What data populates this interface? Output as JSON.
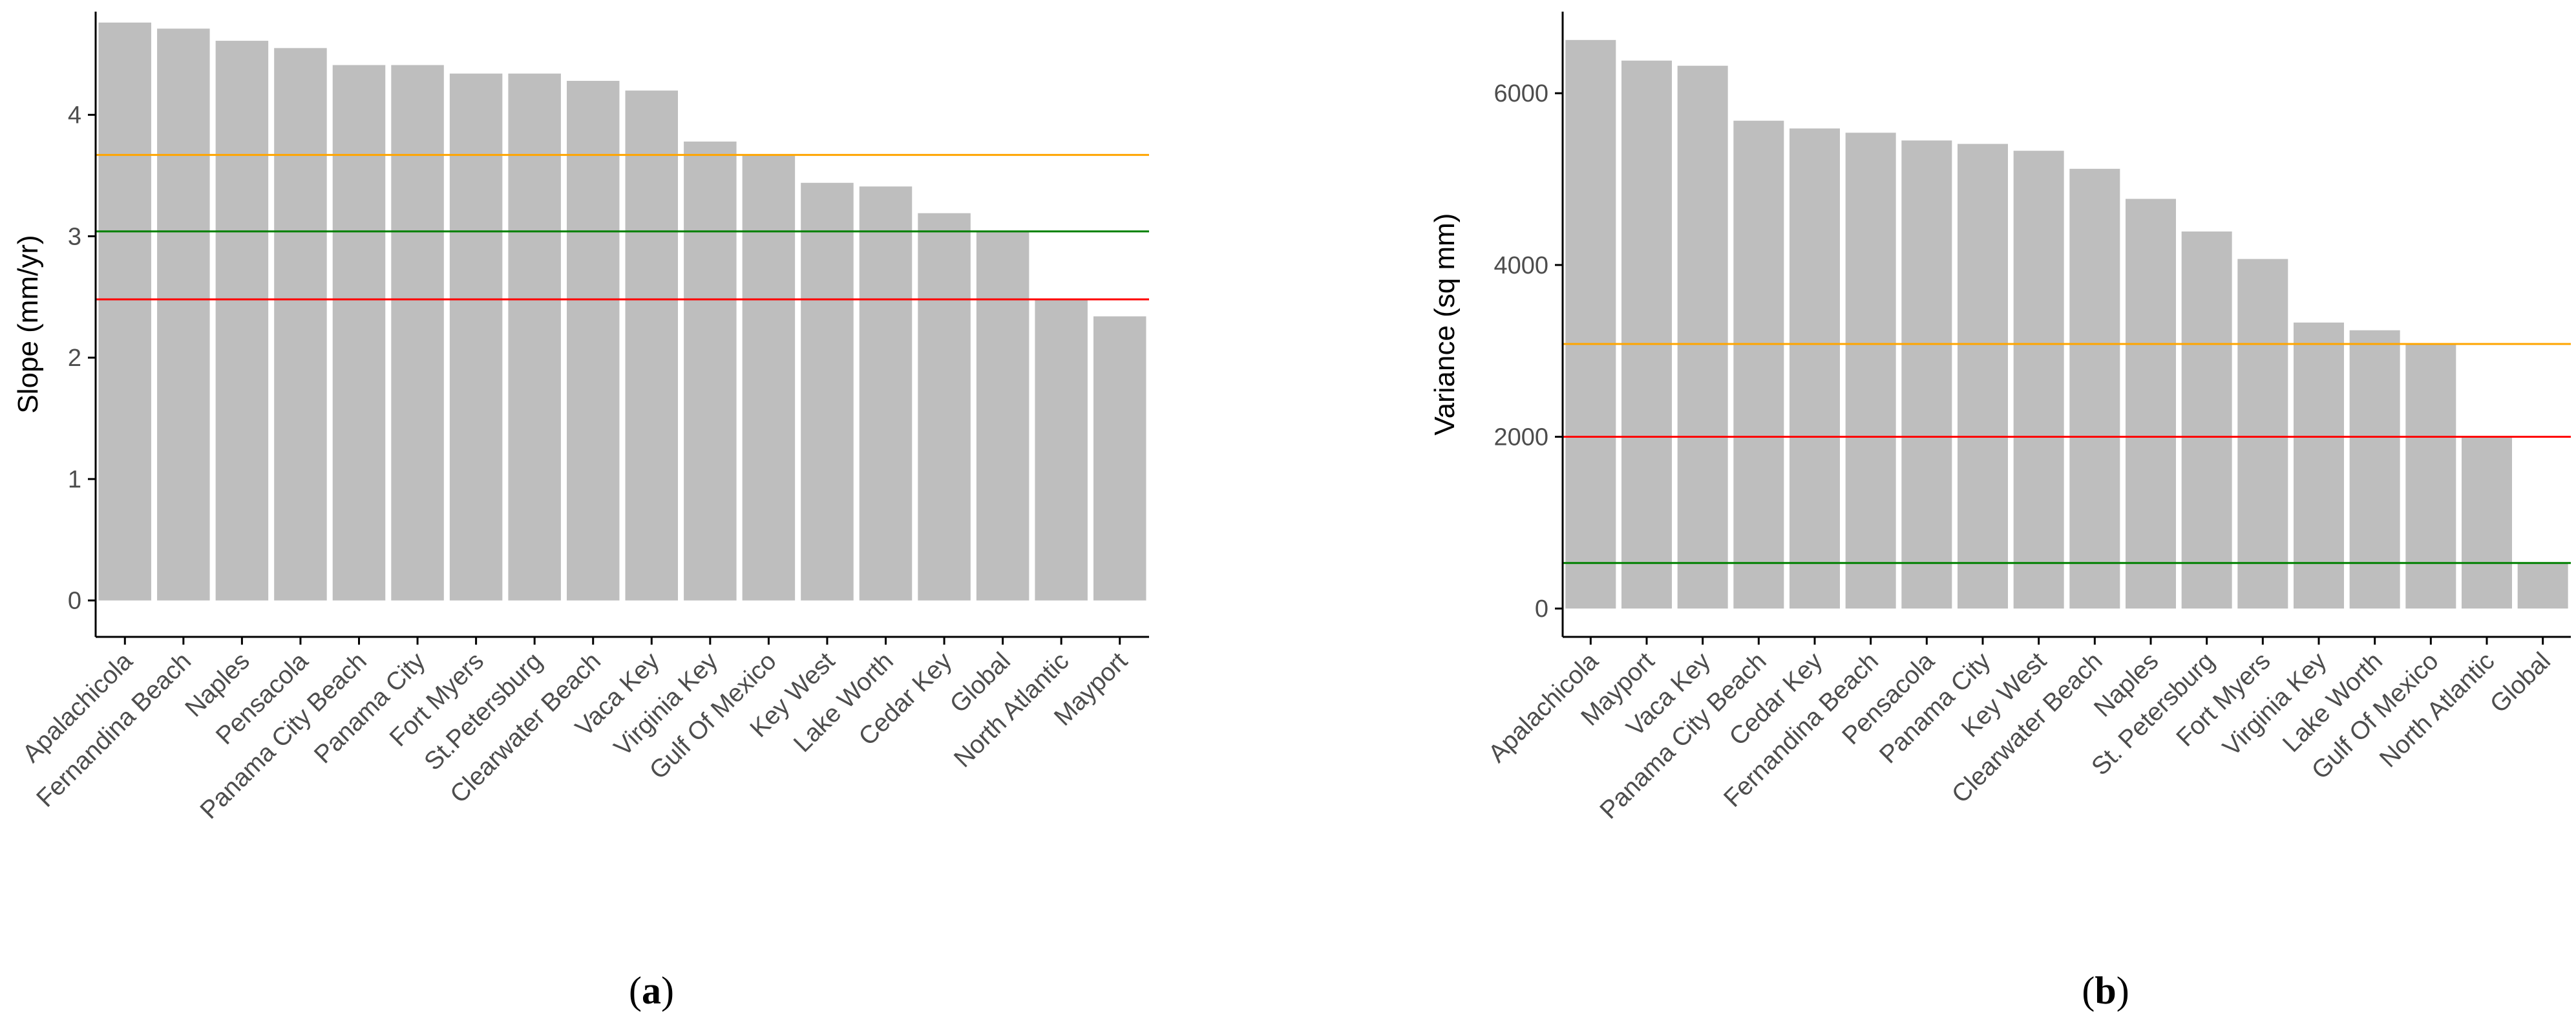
{
  "colors": {
    "bar": "#bebebe",
    "orange": "#ffa500",
    "green": "#008000",
    "red": "#ff0000",
    "axis": "#000000",
    "tick_text": "#4d4d4d"
  },
  "chart_data": [
    {
      "type": "bar",
      "panel_label": {
        "open": "(",
        "letter": "a",
        "close": ")"
      },
      "ylabel": "Slope (mm/yr)",
      "xlabel": "",
      "ylim": [
        -0.3,
        4.85
      ],
      "yticks": [
        0,
        1,
        2,
        3,
        4
      ],
      "categories": [
        "Apalachicola",
        "Fernandina Beach",
        "Naples",
        "Pensacola",
        "Panama City Beach",
        "Panama City",
        "Fort Myers",
        "St.Petersburg",
        "Clearwater Beach",
        "Vaca Key",
        "Virginia Key",
        "Gulf Of Mexico",
        "Key West",
        "Lake Worth",
        "Cedar Key",
        "Global",
        "North Atlantic",
        "Mayport"
      ],
      "values": [
        4.76,
        4.71,
        4.61,
        4.55,
        4.41,
        4.41,
        4.34,
        4.34,
        4.28,
        4.2,
        3.78,
        3.67,
        3.44,
        3.41,
        3.19,
        3.04,
        2.48,
        2.34
      ],
      "reference_lines": [
        {
          "name": "Gulf Of Mexico",
          "value": 3.67,
          "color": "#ffa500"
        },
        {
          "name": "Global",
          "value": 3.04,
          "color": "#008000"
        },
        {
          "name": "North Atlantic",
          "value": 2.48,
          "color": "#ff0000"
        }
      ]
    },
    {
      "type": "bar",
      "panel_label": {
        "open": "(",
        "letter": "b",
        "close": ")"
      },
      "ylabel": "Variance (sq mm)",
      "xlabel": "",
      "ylim": [
        -330,
        6950
      ],
      "yticks": [
        0,
        2000,
        4000,
        6000
      ],
      "categories": [
        "Apalachicola",
        "Mayport",
        "Vaca Key",
        "Panama City Beach",
        "Cedar Key",
        "Fernandina Beach",
        "Pensacola",
        "Panama City",
        "Key West",
        "Clearwater Beach",
        "Naples",
        "St. Petersburg",
        "Fort Myers",
        "Virginia Key",
        "Lake Worth",
        "Gulf Of Mexico",
        "North Atlantic",
        "Global"
      ],
      "values": [
        6620,
        6380,
        6320,
        5680,
        5590,
        5540,
        5450,
        5410,
        5330,
        5120,
        4770,
        4390,
        4070,
        3330,
        3240,
        3080,
        2000,
        530
      ],
      "reference_lines": [
        {
          "name": "Gulf Of Mexico",
          "value": 3080,
          "color": "#ffa500"
        },
        {
          "name": "North Atlantic",
          "value": 2000,
          "color": "#ff0000"
        },
        {
          "name": "Global",
          "value": 530,
          "color": "#008000"
        }
      ]
    }
  ]
}
